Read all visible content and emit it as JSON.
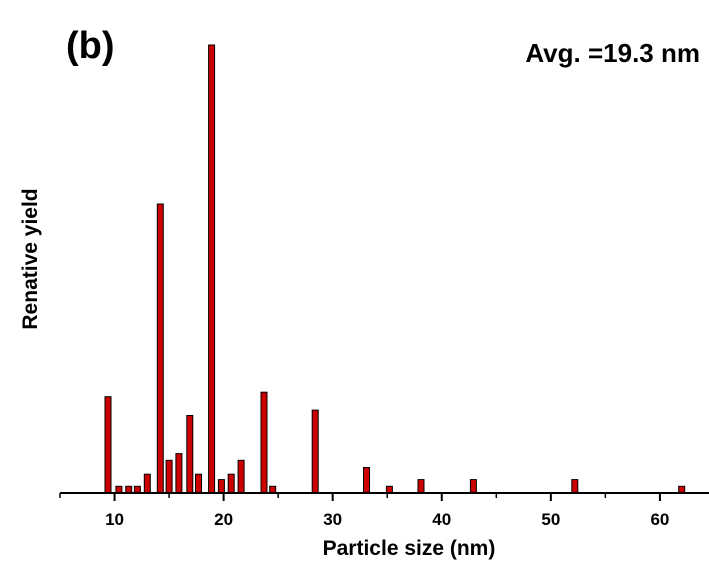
{
  "chart_data": {
    "type": "bar",
    "panel_label": "(b)",
    "annotation": "Avg. =19.3 nm",
    "xlabel": "Particle size (nm)",
    "ylabel": "Renative yield",
    "xlim": [
      5,
      64.5
    ],
    "xticks": [
      10,
      20,
      30,
      40,
      50,
      60
    ],
    "ylim": [
      0,
      100
    ],
    "y_tick_labels_shown": false,
    "bar_color": "#cc0000",
    "x": [
      9.4,
      10.4,
      11.3,
      12.1,
      13.0,
      14.2,
      15.0,
      15.9,
      16.9,
      17.7,
      18.9,
      19.8,
      20.7,
      21.6,
      23.7,
      24.5,
      28.4,
      33.1,
      35.2,
      38.1,
      42.9,
      52.2,
      62.0
    ],
    "values": [
      21.5,
      1.5,
      1.5,
      1.5,
      4.2,
      64.5,
      7.3,
      8.8,
      17.3,
      4.2,
      100,
      3.0,
      4.2,
      7.3,
      22.5,
      1.5,
      18.5,
      5.7,
      1.5,
      3.0,
      3.0,
      3.0,
      1.5
    ]
  }
}
